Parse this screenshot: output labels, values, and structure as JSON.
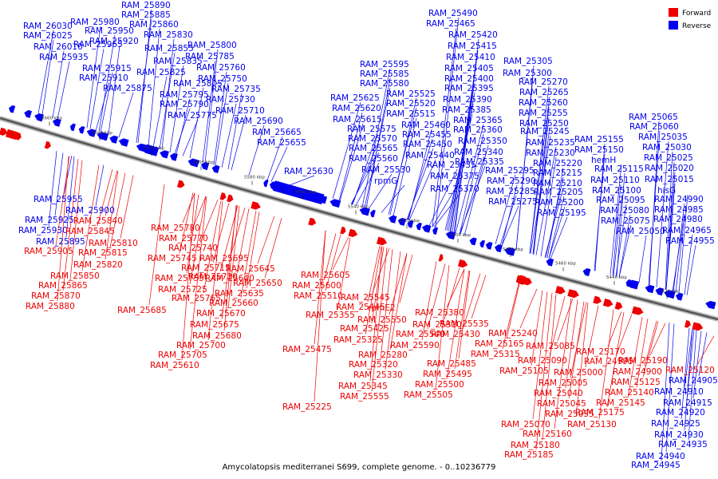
{
  "caption": "Amycolatopsis mediterranei S699, complete genome. - 0..10236779",
  "legend": [
    {
      "label": "Forward",
      "color": "#ee0000"
    },
    {
      "label": "Reverse",
      "color": "#0000ee"
    }
  ],
  "colors": {
    "forward": "#ee0000",
    "reverse": "#0000ee",
    "backbone": "#555555"
  },
  "ticks": [
    "5660 kbp",
    "5640 kbp",
    "5620 kbp",
    "5600 kbp",
    "5580 kbp",
    "5560 kbp",
    "5540 kbp",
    "5520 kbp",
    "5500 kbp",
    "5480 kbp",
    "5460 kbp",
    "5440 kbp",
    "5420 kbp"
  ],
  "labels_blue": [
    "RAM_25890",
    "RAM_25980",
    "RAM_25885",
    "RAM_25965",
    "RAM_26030",
    "RAM_25860",
    "RAM_26025",
    "RAM_25950",
    "RAM_25830",
    "RAM_26010",
    "RAM_25920",
    "RAM_25855",
    "RAM_25800",
    "RAM_25935",
    "RAM_25785",
    "RAM_25835",
    "RAM_25915",
    "RAM_25760",
    "RAM_25825",
    "RAM_25910",
    "RAM_25750",
    "RAM_25805",
    "RAM_25875",
    "RAM_25735",
    "RAM_25795",
    "RAM_25730",
    "RAM_25790",
    "RAM_25710",
    "RAM_25775",
    "RAM_25690",
    "RAM_25665",
    "RAM_25655",
    "RAM_25490",
    "RAM_25465",
    "RAM_25420",
    "RAM_25415",
    "RAM_25410",
    "RAM_25595",
    "RAM_25405",
    "RAM_25585",
    "RAM_25400",
    "RAM_25580",
    "RAM_25395",
    "RAM_25525",
    "RAM_25390",
    "RAM_25625",
    "RAM_25520",
    "RAM_25385",
    "RAM_25620",
    "RAM_25515",
    "RAM_25615",
    "RAM_25365",
    "RAM_25460",
    "RAM_25360",
    "RAM_25575",
    "RAM_25455",
    "RAM_25570",
    "RAM_25350",
    "RAM_25450",
    "RAM_25565",
    "RAM_25340",
    "RAM_25440",
    "RAM_25560",
    "RAM_25335",
    "RAM_25435",
    "RAM_25530",
    "RAM_25375",
    "RAM_25630",
    "rpmG",
    "RAM_25370",
    "RAM_25305",
    "RAM_25300",
    "RAM_25270",
    "RAM_25265",
    "RAM_25260",
    "RAM_25255",
    "RAM_25250",
    "RAM_25245",
    "RAM_25235",
    "RAM_25230",
    "RAM_25220",
    "RAM_25295",
    "RAM_25215",
    "RAM_25290",
    "RAM_25210",
    "RAM_25285",
    "RAM_25205",
    "RAM_25275",
    "RAM_25200",
    "RAM_25195",
    "RAM_25065",
    "RAM_25060",
    "RAM_25035",
    "RAM_25155",
    "RAM_25030",
    "RAM_25150",
    "RAM_25025",
    "hemH",
    "RAM_25020",
    "RAM_25115",
    "RAM_25015",
    "RAM_25110",
    "hisG",
    "RAM_25100",
    "RAM_24990",
    "RAM_25095",
    "RAM_24985",
    "RAM_25080",
    "RAM_24980",
    "RAM_25075",
    "RAM_24965",
    "RAM_25050",
    "RAM_24955",
    "RAM_25955",
    "RAM_25900",
    "RAM_25925",
    "RAM_25930",
    "RAM_25895",
    "RAM_24905",
    "RAM_24910",
    "RAM_24915",
    "RAM_24920",
    "RAM_24925",
    "RAM_24930",
    "RAM_24935",
    "RAM_24940",
    "RAM_24945"
  ],
  "labels_red": [
    "RAM_25840",
    "RAM_25845",
    "RAM_25810",
    "RAM_25905",
    "RAM_25815",
    "RAM_25820",
    "RAM_25850",
    "RAM_25865",
    "RAM_25870",
    "RAM_25880",
    "RAM_25780",
    "RAM_25770",
    "RAM_25740",
    "RAM_25745",
    "RAM_25715",
    "RAM_25755",
    "RAM_25720",
    "RAM_25725",
    "RAM_25765",
    "RAM_25685",
    "RAM_25695",
    "RAM_25640",
    "RAM_25645",
    "RAM_25635",
    "RAM_25650",
    "RAM_25660",
    "RAM_25670",
    "RAM_25675",
    "RAM_25680",
    "RAM_25700",
    "RAM_25705",
    "RAM_25610",
    "RAM_25605",
    "RAM_25600",
    "RAM_25510",
    "RAM_25545",
    "RAM_25445",
    "rpmE2",
    "RAM_25550",
    "RAM_25355",
    "RAM_25380",
    "RAM_25310",
    "RAM_25535",
    "RAM_25425",
    "RAM_25540",
    "RAM_25325",
    "RAM_25430",
    "RAM_25590",
    "RAM_25475",
    "RAM_25280",
    "RAM_25315",
    "RAM_25485",
    "RAM_25320",
    "RAM_25495",
    "RAM_25330",
    "RAM_25500",
    "RAM_25345",
    "RAM_25505",
    "RAM_25555",
    "RAM_25225",
    "RAM_25240",
    "RAM_25165",
    "RAM_25085",
    "RAM_25170",
    "RAM_25090",
    "RAM_24995",
    "RAM_25190",
    "RAM_25105",
    "RAM_25000",
    "RAM_24900",
    "RAM_25120",
    "RAM_25005",
    "RAM_25125",
    "RAM_25040",
    "RAM_25140",
    "RAM_25045",
    "RAM_25145",
    "RAM_25055",
    "RAM_25175",
    "RAM_25070",
    "RAM_25130",
    "RAM_25160",
    "RAM_25180",
    "RAM_25185"
  ]
}
